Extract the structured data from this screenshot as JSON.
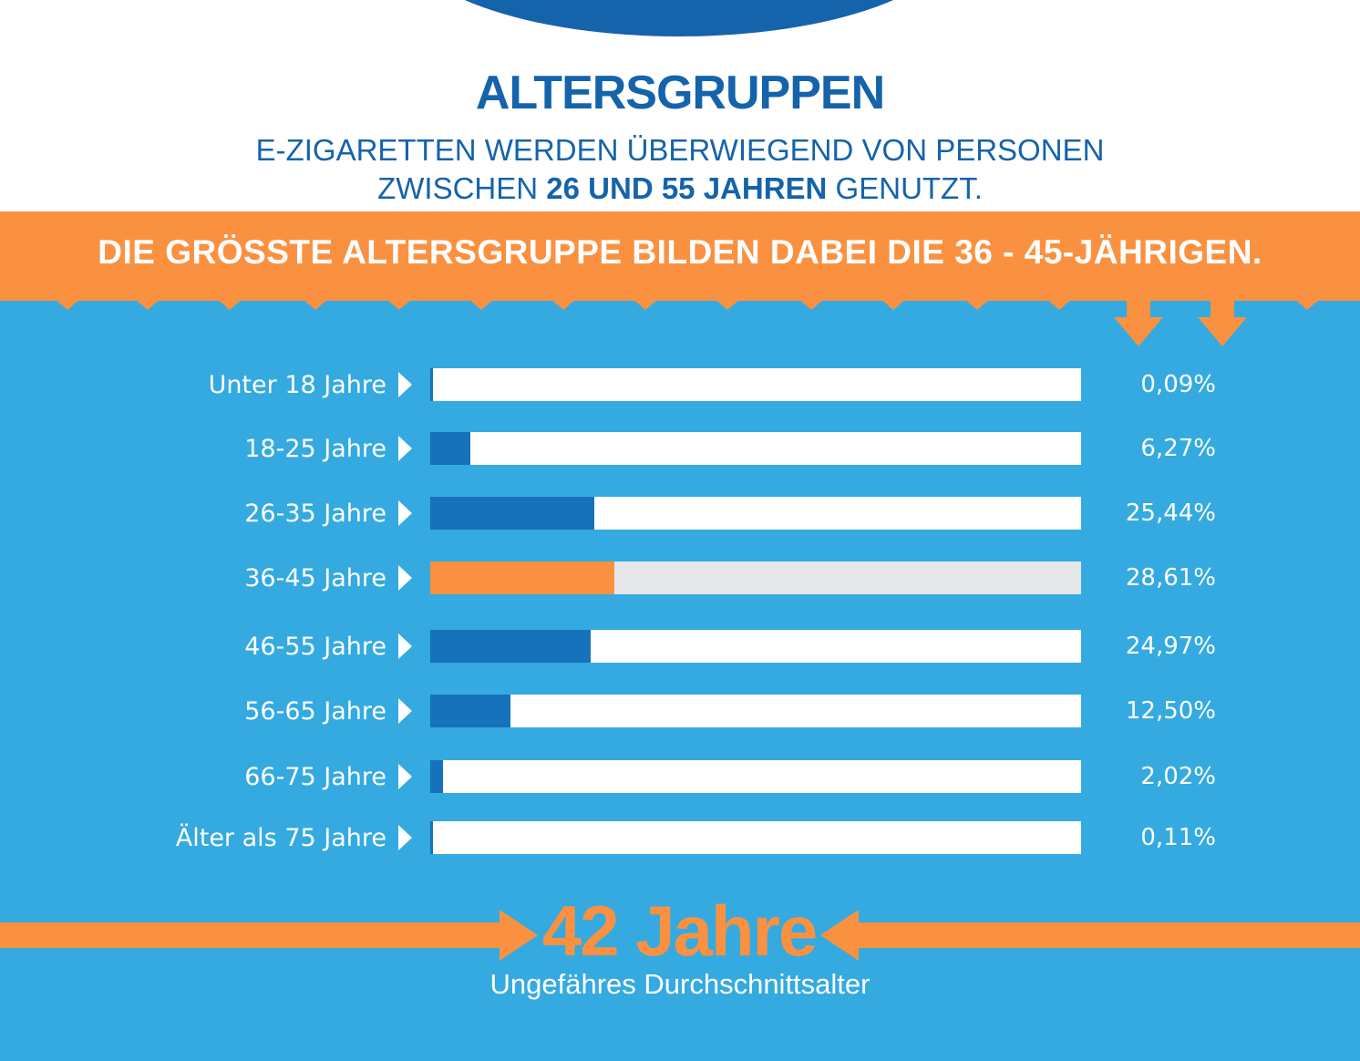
{
  "header": {
    "title": "ALTERSGRUPPEN",
    "subtitle_line1": "E-ZIGARETTEN WERDEN ÜBERWIEGEND VON PERSONEN",
    "subtitle_line2_prefix": "ZWISCHEN ",
    "subtitle_line2_bold": "26 UND 55 JAHREN",
    "subtitle_line2_suffix": " GENUTZT."
  },
  "banner": {
    "text": "DIE GRÖSSTE ALTERSGRUPPE BILDEN DABEI DIE 36 - 45-JÄHRIGEN."
  },
  "average": {
    "value": "42 Jahre",
    "label": "Ungefähres Durchschnittsalter"
  },
  "colors": {
    "brand_blue": "#1563ab",
    "panel_blue": "#34aae0",
    "bar_blue": "#1672bb",
    "accent_orange": "#fa9141",
    "track_white": "#ffffff",
    "track_highlight": "#e6e7e8"
  },
  "chart_data": {
    "type": "bar",
    "orientation": "horizontal",
    "categories": [
      "Unter 18 Jahre",
      "18-25 Jahre",
      "26-35 Jahre",
      "36-45 Jahre",
      "46-55 Jahre",
      "56-65 Jahre",
      "66-75 Jahre",
      "Älter als 75 Jahre"
    ],
    "values": [
      0.09,
      6.27,
      25.44,
      28.61,
      24.97,
      12.5,
      2.02,
      0.11
    ],
    "value_labels": [
      "0,09%",
      "6,27%",
      "25,44%",
      "28,61%",
      "24,97%",
      "12,50%",
      "2,02%",
      "0,11%"
    ],
    "highlight_index": 3,
    "xlim": [
      0,
      100
    ],
    "unit": "%",
    "grid": false,
    "legend": "none"
  }
}
